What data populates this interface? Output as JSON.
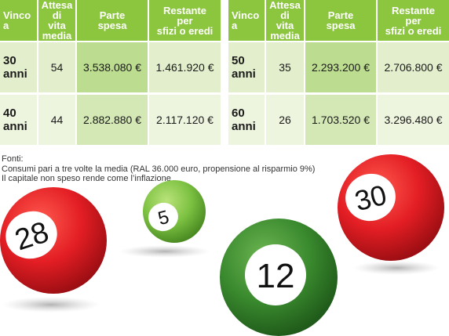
{
  "headers": [
    "Vinco a",
    "Attesa di vita media",
    "Parte spesa",
    "Restante per sfizi o eredi"
  ],
  "left_table": [
    {
      "age": "30 anni",
      "life": "54",
      "spent": "3.538.080 €",
      "remaining": "1.461.920 €"
    },
    {
      "age": "40 anni",
      "life": "44",
      "spent": "2.882.880 €",
      "remaining": "2.117.120 €"
    }
  ],
  "right_table": [
    {
      "age": "50 anni",
      "life": "35",
      "spent": "2.293.200 €",
      "remaining": "2.706.800 €"
    },
    {
      "age": "60 anni",
      "life": "26",
      "spent": "1.703.520 €",
      "remaining": "3.296.480 €"
    }
  ],
  "sources": {
    "title": "Fonti:",
    "lines": [
      "Consumi pari a tre volte la media (RAL 36.000 euro, propensione al risparmio 9%)",
      "Il capitale non speso rende come l’inflazione"
    ]
  },
  "balls": {
    "red_left": "28",
    "green_small": "5",
    "green_big": "12",
    "red_right": "30"
  },
  "colors": {
    "header_green": "#8cc63f",
    "ball_red": "#e31e24",
    "ball_green_light": "#7dc242",
    "ball_green_dark": "#3a8a2e"
  }
}
